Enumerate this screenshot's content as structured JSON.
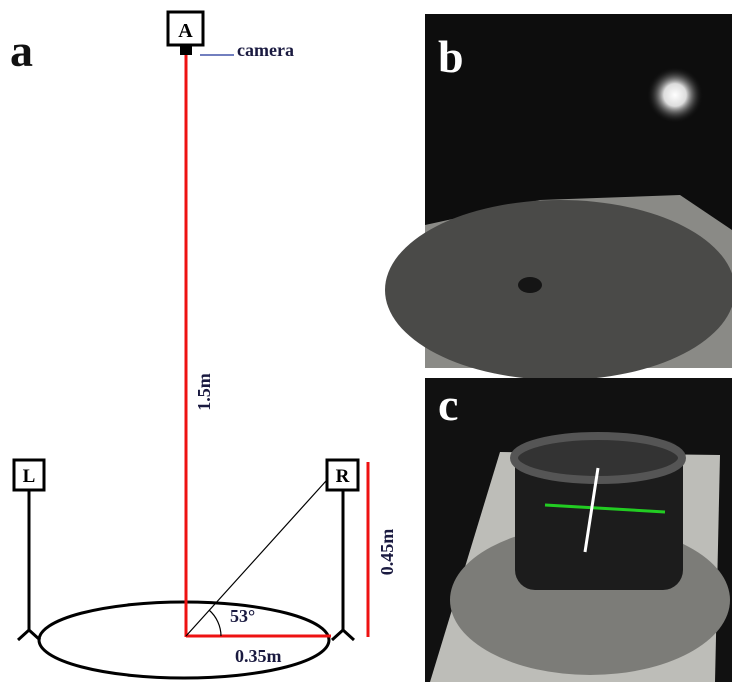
{
  "panel_a": {
    "label": "a",
    "camera_box": "A",
    "camera_label": "camera",
    "height_label": "1.5m",
    "left_box": "L",
    "right_box": "R",
    "pole_label": "0.45m",
    "angle_label": "53°",
    "radius_label": "0.35m"
  },
  "panel_b": {
    "label": "b"
  },
  "panel_c": {
    "label": "c"
  }
}
